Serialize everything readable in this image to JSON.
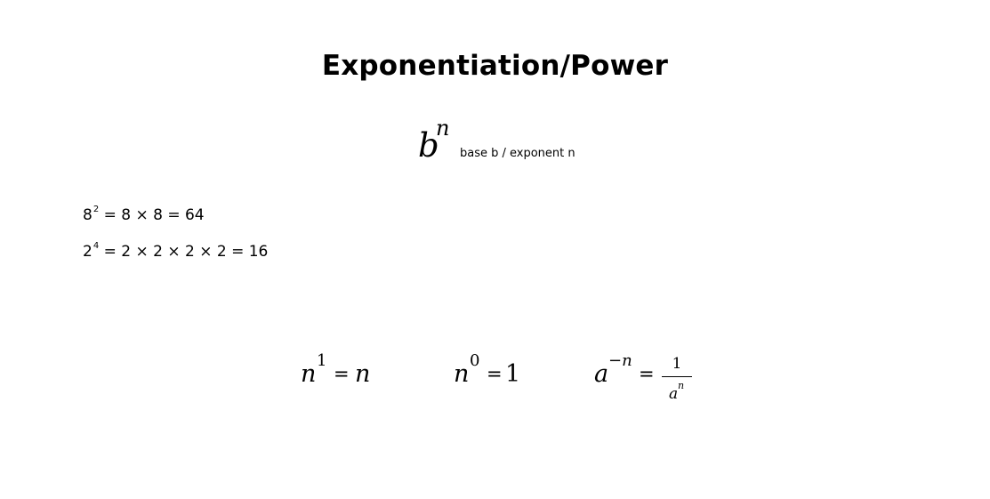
{
  "title": "Exponentiation/Power",
  "notation": {
    "base": "b",
    "exponent": "n",
    "caption": "base b / exponent n"
  },
  "examples": [
    {
      "base": "8",
      "exponent": "2",
      "expansion": "= 8 × 8 = 64"
    },
    {
      "base": "2",
      "exponent": "4",
      "expansion": "= 2 × 2 × 2 × 2 = 16"
    }
  ],
  "rules": {
    "identity": {
      "base": "n",
      "exponent": "1",
      "equals": "=",
      "result": "n"
    },
    "zero": {
      "base": "n",
      "exponent": "0",
      "equals": "=",
      "result": "1"
    },
    "negative": {
      "base": "a",
      "exponent": "−n",
      "equals": "=",
      "numerator": "1",
      "denominator_base": "a",
      "denominator_exponent": "n"
    }
  }
}
